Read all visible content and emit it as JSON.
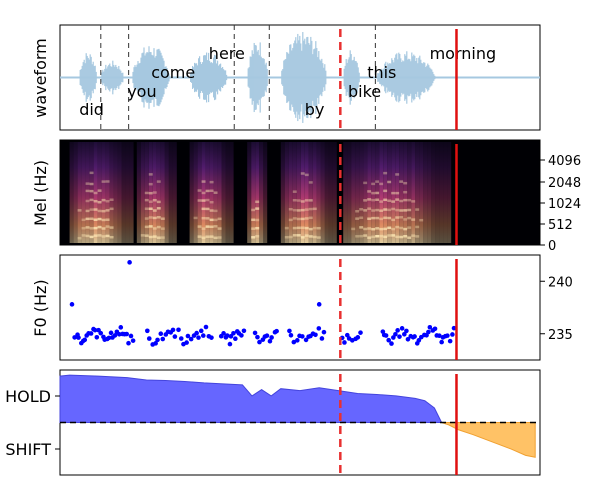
{
  "chart_data": {
    "type": "multi-panel",
    "time_range": [
      0,
      1
    ],
    "words": [
      {
        "text": "did",
        "x": 0.04,
        "row": "low"
      },
      {
        "text": "you",
        "x": 0.14,
        "row": "mid"
      },
      {
        "text": "come",
        "x": 0.19,
        "row": "upper"
      },
      {
        "text": "here",
        "x": 0.31,
        "row": "high"
      },
      {
        "text": "by",
        "x": 0.51,
        "row": "low"
      },
      {
        "text": "bike",
        "x": 0.6,
        "row": "mid"
      },
      {
        "text": "this",
        "x": 0.64,
        "row": "upper"
      },
      {
        "text": "morning",
        "x": 0.77,
        "row": "high"
      }
    ],
    "word_boundaries": [
      0.085,
      0.143,
      0.363,
      0.436,
      0.657
    ],
    "dashed_marker": 0.584,
    "solid_marker": 0.826,
    "waveform": {
      "ylabel": "waveform",
      "color": "#a6c8e0",
      "segments": [
        {
          "start": 0.04,
          "end": 0.083,
          "amp": 0.55
        },
        {
          "start": 0.085,
          "end": 0.14,
          "amp": 0.35
        },
        {
          "start": 0.15,
          "end": 0.24,
          "amp": 0.7
        },
        {
          "start": 0.27,
          "end": 0.36,
          "amp": 0.55
        },
        {
          "start": 0.39,
          "end": 0.44,
          "amp": 0.8
        },
        {
          "start": 0.46,
          "end": 0.57,
          "amp": 0.95
        },
        {
          "start": 0.59,
          "end": 0.63,
          "amp": 0.6
        },
        {
          "start": 0.66,
          "end": 0.8,
          "amp": 0.55
        }
      ]
    },
    "mel": {
      "ylabel": "Mel (Hz)",
      "yticks": [
        "0",
        "512",
        "1024",
        "2048",
        "4096"
      ],
      "active_segments": [
        [
          0.02,
          0.16
        ],
        [
          0.16,
          0.25
        ],
        [
          0.27,
          0.37
        ],
        [
          0.39,
          0.44
        ],
        [
          0.46,
          0.58
        ],
        [
          0.59,
          0.82
        ]
      ]
    },
    "f0": {
      "ylabel": "F0 (Hz)",
      "yticks": [
        235,
        240
      ],
      "ylim": [
        232.5,
        242.5
      ],
      "point_color": "#0000ff",
      "segments": [
        {
          "start": 0.03,
          "end": 0.155,
          "count": 30
        },
        {
          "start": 0.18,
          "end": 0.32,
          "count": 26
        },
        {
          "start": 0.335,
          "end": 0.385,
          "count": 12
        },
        {
          "start": 0.405,
          "end": 0.455,
          "count": 10
        },
        {
          "start": 0.475,
          "end": 0.555,
          "count": 14
        },
        {
          "start": 0.585,
          "end": 0.63,
          "count": 8
        },
        {
          "start": 0.67,
          "end": 0.825,
          "count": 34
        }
      ],
      "outliers": [
        {
          "x": 0.145,
          "y": 241.8
        },
        {
          "x": 0.025,
          "y": 237.8
        },
        {
          "x": 0.54,
          "y": 237.8
        }
      ]
    },
    "turn": {
      "yticks": [
        "HOLD",
        "SHIFT"
      ],
      "ylim": [
        -1,
        1
      ],
      "threshold": 0,
      "hold_color": "#6666ff",
      "shift_color": "#ffc266",
      "hold_curve": [
        [
          0,
          0.96
        ],
        [
          0.02,
          0.98
        ],
        [
          0.05,
          0.97
        ],
        [
          0.08,
          0.96
        ],
        [
          0.1,
          0.95
        ],
        [
          0.14,
          0.93
        ],
        [
          0.18,
          0.88
        ],
        [
          0.22,
          0.87
        ],
        [
          0.26,
          0.85
        ],
        [
          0.3,
          0.82
        ],
        [
          0.34,
          0.8
        ],
        [
          0.38,
          0.78
        ],
        [
          0.4,
          0.55
        ],
        [
          0.42,
          0.68
        ],
        [
          0.44,
          0.55
        ],
        [
          0.46,
          0.7
        ],
        [
          0.5,
          0.66
        ],
        [
          0.54,
          0.72
        ],
        [
          0.58,
          0.66
        ],
        [
          0.62,
          0.6
        ],
        [
          0.66,
          0.58
        ],
        [
          0.7,
          0.55
        ],
        [
          0.74,
          0.5
        ],
        [
          0.76,
          0.45
        ],
        [
          0.78,
          0.3
        ],
        [
          0.795,
          0.0
        ]
      ],
      "shift_curve": [
        [
          0.795,
          0.0
        ],
        [
          0.81,
          -0.05
        ],
        [
          0.83,
          -0.15
        ],
        [
          0.86,
          -0.25
        ],
        [
          0.9,
          -0.4
        ],
        [
          0.94,
          -0.55
        ],
        [
          0.97,
          -0.68
        ],
        [
          0.99,
          -0.72
        ],
        [
          0.99,
          0.0
        ]
      ]
    }
  }
}
